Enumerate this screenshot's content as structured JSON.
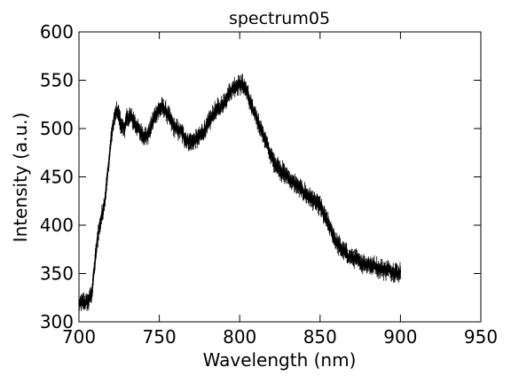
{
  "chart_data": {
    "type": "line",
    "title": "spectrum05",
    "xlabel": "Wavelength (nm)",
    "ylabel": "Intensity (a.u.)",
    "xlim": [
      700,
      950
    ],
    "ylim": [
      300,
      600
    ],
    "xticks": [
      700,
      750,
      800,
      850,
      900,
      950
    ],
    "yticks": [
      300,
      350,
      400,
      450,
      500,
      550,
      600
    ],
    "grid": false,
    "error_bars": true,
    "line_color": "#000000",
    "series": [
      {
        "x": [
          700,
          702,
          704,
          706,
          708,
          710,
          712,
          714,
          716,
          718,
          720,
          722,
          724,
          726,
          728,
          730,
          732,
          734,
          736,
          738,
          740,
          742,
          744,
          746,
          748,
          750,
          752,
          754,
          756,
          758,
          760,
          762,
          764,
          766,
          768,
          770,
          772,
          774,
          776,
          778,
          780,
          782,
          784,
          786,
          788,
          790,
          792,
          794,
          796,
          798,
          800,
          802,
          804,
          806,
          808,
          810,
          812,
          814,
          816,
          818,
          820,
          822,
          824,
          826,
          828,
          830,
          832,
          834,
          836,
          838,
          840,
          842,
          844,
          846,
          848,
          850,
          852,
          854,
          856,
          858,
          860,
          862,
          864,
          866,
          868,
          870,
          872,
          874,
          876,
          878,
          880,
          882,
          884,
          886,
          888,
          890,
          892,
          894,
          896,
          898,
          900
        ],
        "y": [
          318,
          320,
          320,
          322,
          330,
          362,
          392,
          408,
          425,
          455,
          490,
          512,
          518,
          505,
          500,
          510,
          513,
          508,
          502,
          497,
          493,
          492,
          497,
          508,
          516,
          520,
          522,
          518,
          512,
          505,
          500,
          498,
          496,
          490,
          487,
          486,
          488,
          490,
          494,
          498,
          503,
          510,
          516,
          520,
          522,
          527,
          533,
          538,
          542,
          545,
          546,
          545,
          540,
          530,
          520,
          512,
          505,
          497,
          488,
          478,
          470,
          464,
          460,
          456,
          453,
          450,
          446,
          443,
          440,
          437,
          434,
          431,
          428,
          425,
          422,
          420,
          412,
          405,
          398,
          390,
          383,
          378,
          374,
          371,
          368,
          366,
          365,
          363,
          361,
          360,
          360,
          358,
          358,
          356,
          355,
          354,
          354,
          353,
          352,
          351,
          351
        ],
        "yerr": 6
      }
    ]
  }
}
